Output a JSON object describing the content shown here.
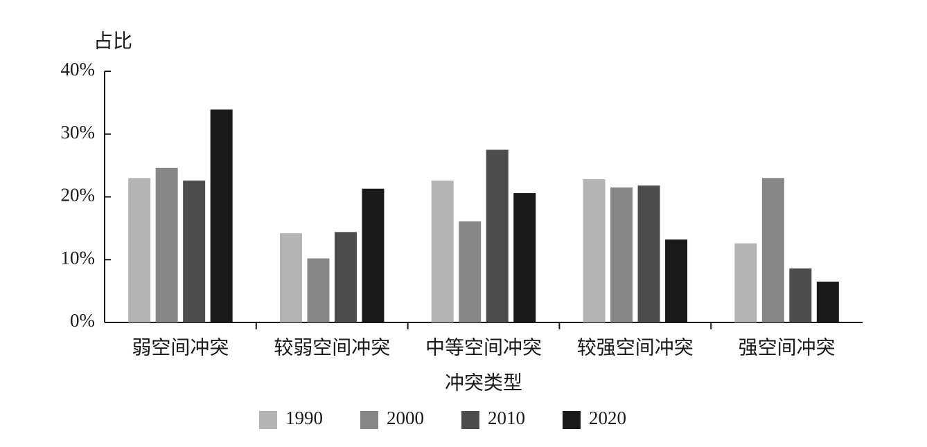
{
  "chart_data": {
    "type": "bar",
    "y_label": "占比",
    "x_label": "冲突类型",
    "categories": [
      "弱空间冲突",
      "较弱空间冲突",
      "中等空间冲突",
      "较强空间冲突",
      "强空间冲突"
    ],
    "series": [
      {
        "name": "1990",
        "color": "#b4b4b4",
        "values": [
          23.0,
          14.2,
          22.6,
          22.8,
          12.6
        ]
      },
      {
        "name": "2000",
        "color": "#878787",
        "values": [
          24.6,
          10.2,
          16.1,
          21.5,
          23.0
        ]
      },
      {
        "name": "2010",
        "color": "#4d4d4d",
        "values": [
          22.6,
          14.4,
          27.5,
          21.8,
          8.6
        ]
      },
      {
        "name": "2020",
        "color": "#1a1a1a",
        "values": [
          33.9,
          21.3,
          20.6,
          13.2,
          6.5
        ]
      }
    ],
    "ylim": [
      0,
      40
    ],
    "yticks": [
      {
        "value": 0,
        "label": "0%"
      },
      {
        "value": 10,
        "label": "10%"
      },
      {
        "value": 20,
        "label": "20%"
      },
      {
        "value": 30,
        "label": "30%"
      },
      {
        "value": 40,
        "label": "40%"
      }
    ],
    "legend": "bottom"
  }
}
